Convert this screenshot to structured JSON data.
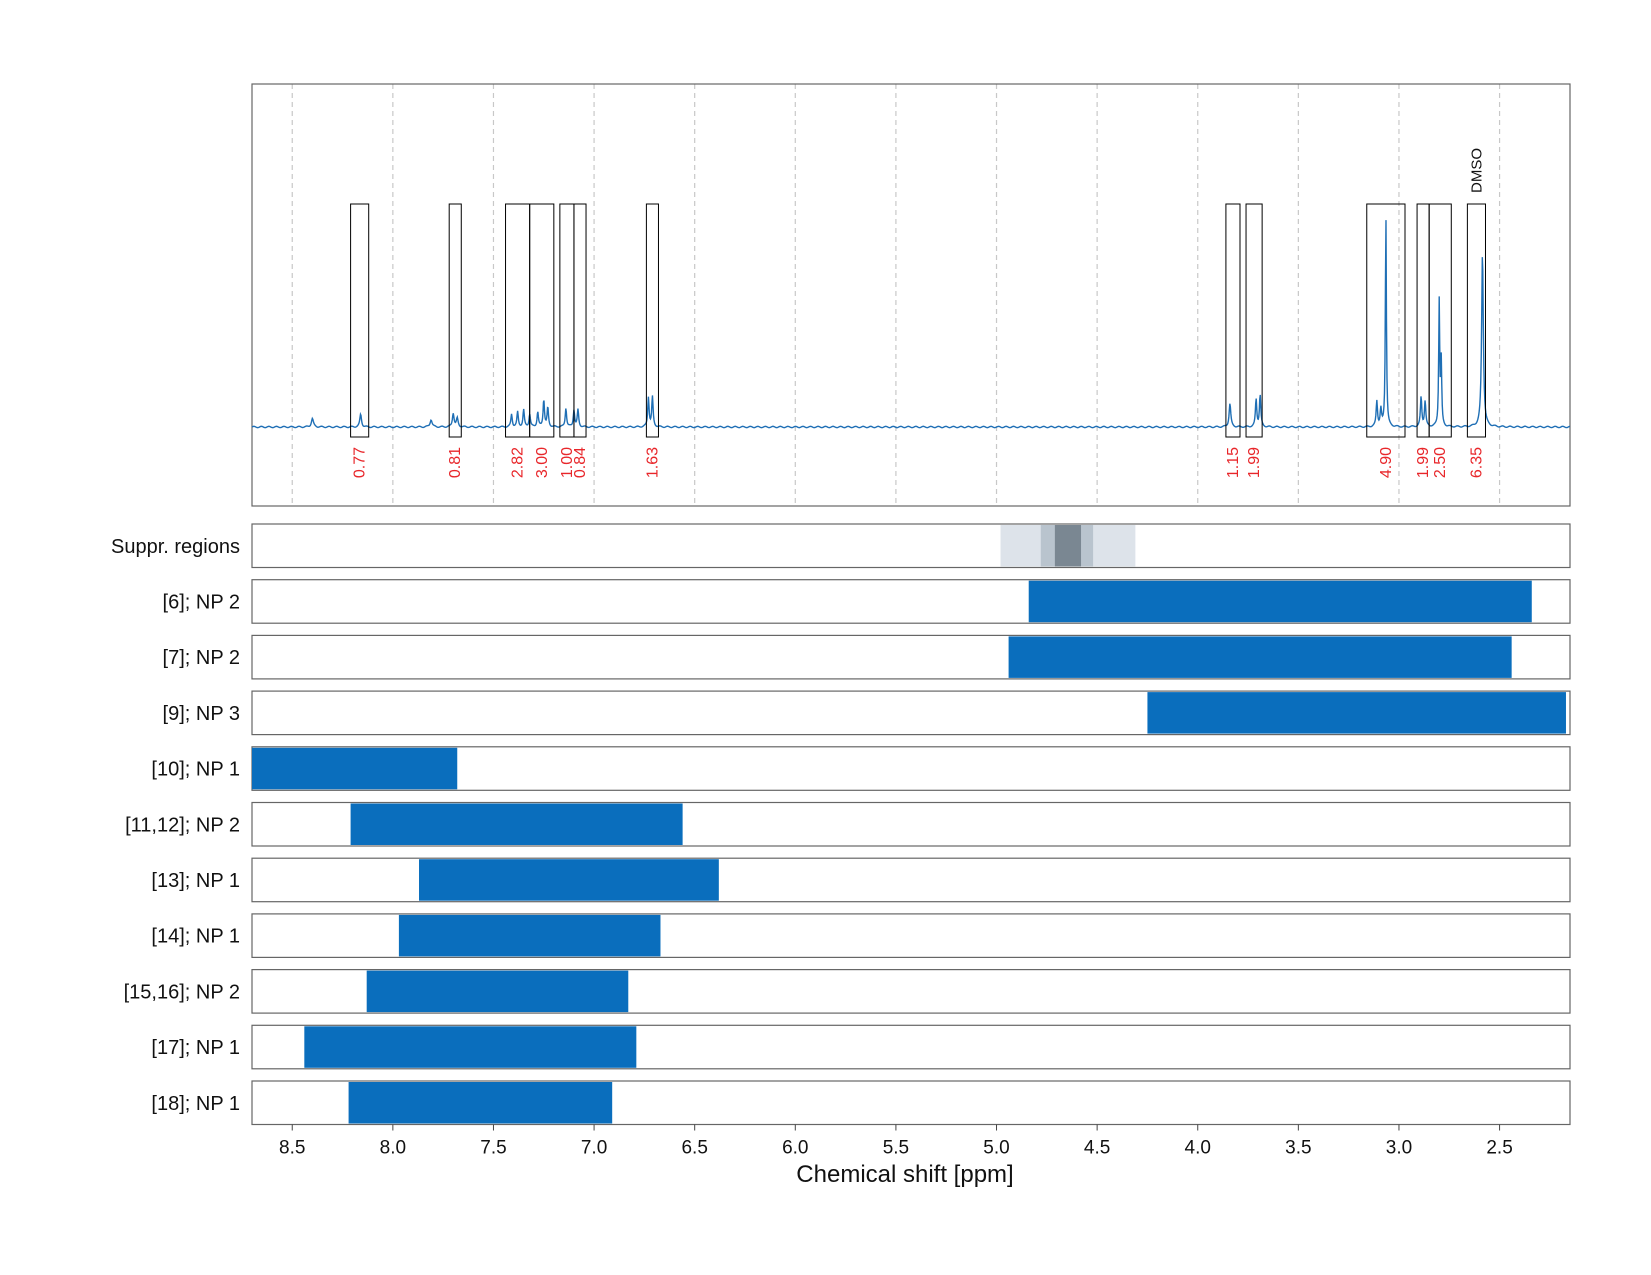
{
  "chart_data": {
    "type": "nmr-spectrum-with-ranges",
    "xlabel": "Chemical shift [ppm]",
    "x_direction": "descending",
    "xlim": [
      8.7,
      2.15
    ],
    "x_ticks": [
      "8.5",
      "8.0",
      "7.5",
      "7.0",
      "6.5",
      "6.0",
      "5.5",
      "5.0",
      "4.5",
      "4.0",
      "3.5",
      "3.0",
      "2.5"
    ],
    "grid": "vertical dashed",
    "colors": {
      "spectrum": "#1f6fb5",
      "bar": "#0a6ebd",
      "integral": "#e8262a",
      "box": "#000000"
    },
    "spectrum_peaks": [
      {
        "ppm": 8.4,
        "height": 0.04,
        "width": 0.006
      },
      {
        "ppm": 8.16,
        "height": 0.06,
        "width": 0.005
      },
      {
        "ppm": 7.81,
        "height": 0.035,
        "width": 0.006
      },
      {
        "ppm": 7.7,
        "height": 0.065,
        "width": 0.005
      },
      {
        "ppm": 7.68,
        "height": 0.04,
        "width": 0.005
      },
      {
        "ppm": 7.41,
        "height": 0.06,
        "width": 0.004
      },
      {
        "ppm": 7.38,
        "height": 0.07,
        "width": 0.004
      },
      {
        "ppm": 7.35,
        "height": 0.08,
        "width": 0.004
      },
      {
        "ppm": 7.32,
        "height": 0.06,
        "width": 0.004
      },
      {
        "ppm": 7.28,
        "height": 0.07,
        "width": 0.004
      },
      {
        "ppm": 7.25,
        "height": 0.13,
        "width": 0.004
      },
      {
        "ppm": 7.23,
        "height": 0.09,
        "width": 0.004
      },
      {
        "ppm": 7.14,
        "height": 0.09,
        "width": 0.004
      },
      {
        "ppm": 7.1,
        "height": 0.08,
        "width": 0.004
      },
      {
        "ppm": 7.08,
        "height": 0.08,
        "width": 0.004
      },
      {
        "ppm": 6.73,
        "height": 0.14,
        "width": 0.004
      },
      {
        "ppm": 6.71,
        "height": 0.14,
        "width": 0.004
      },
      {
        "ppm": 3.84,
        "height": 0.11,
        "width": 0.005
      },
      {
        "ppm": 3.71,
        "height": 0.13,
        "width": 0.004
      },
      {
        "ppm": 3.69,
        "height": 0.15,
        "width": 0.004
      },
      {
        "ppm": 3.11,
        "height": 0.12,
        "width": 0.004
      },
      {
        "ppm": 3.09,
        "height": 0.08,
        "width": 0.004
      },
      {
        "ppm": 3.065,
        "height": 1.0,
        "width": 0.003
      },
      {
        "ppm": 2.89,
        "height": 0.14,
        "width": 0.004
      },
      {
        "ppm": 2.87,
        "height": 0.12,
        "width": 0.004
      },
      {
        "ppm": 2.8,
        "height": 0.59,
        "width": 0.003
      },
      {
        "ppm": 2.79,
        "height": 0.3,
        "width": 0.003
      },
      {
        "ppm": 2.585,
        "height": 0.82,
        "width": 0.005
      }
    ],
    "integration_regions": [
      {
        "from": 8.21,
        "to": 8.12,
        "integral": "0.77"
      },
      {
        "from": 7.72,
        "to": 7.66,
        "integral": "0.81"
      },
      {
        "from": 7.44,
        "to": 7.32,
        "integral": "2.82"
      },
      {
        "from": 7.32,
        "to": 7.2,
        "integral": "3.00"
      },
      {
        "from": 7.17,
        "to": 7.1,
        "integral": "1.00"
      },
      {
        "from": 7.1,
        "to": 7.04,
        "integral": "0.84"
      },
      {
        "from": 6.74,
        "to": 6.68,
        "integral": "1.63"
      },
      {
        "from": 3.86,
        "to": 3.79,
        "integral": "1.15"
      },
      {
        "from": 3.76,
        "to": 3.68,
        "integral": "1.99"
      },
      {
        "from": 3.16,
        "to": 2.97,
        "integral": "4.90"
      },
      {
        "from": 2.91,
        "to": 2.85,
        "integral": "1.99"
      },
      {
        "from": 2.85,
        "to": 2.74,
        "integral": "2.50"
      },
      {
        "from": 2.66,
        "to": 2.57,
        "integral": "6.35"
      }
    ],
    "annotations": [
      {
        "ppm": 2.615,
        "text": "DMSO"
      }
    ],
    "suppressed_regions": [
      {
        "from": 4.98,
        "to": 4.31,
        "level": 1
      },
      {
        "from": 4.78,
        "to": 4.52,
        "level": 2
      },
      {
        "from": 4.71,
        "to": 4.58,
        "level": 3
      }
    ],
    "rows": [
      {
        "label": "Suppr. regions"
      },
      {
        "label": "[6]; NP 2",
        "from": 4.84,
        "to": 2.34
      },
      {
        "label": "[7]; NP 2",
        "from": 4.94,
        "to": 2.44
      },
      {
        "label": "[9]; NP 3",
        "from": 4.25,
        "to": 2.17
      },
      {
        "label": "[10]; NP 1",
        "from": 8.7,
        "to": 7.68
      },
      {
        "label": "[11,12]; NP 2",
        "from": 8.21,
        "to": 6.56
      },
      {
        "label": "[13]; NP 1",
        "from": 7.87,
        "to": 6.38
      },
      {
        "label": "[14]; NP 1",
        "from": 7.97,
        "to": 6.67
      },
      {
        "label": "[15,16]; NP 2",
        "from": 8.13,
        "to": 6.83
      },
      {
        "label": "[17]; NP 1",
        "from": 8.44,
        "to": 6.79
      },
      {
        "label": "[18]; NP 1",
        "from": 8.22,
        "to": 6.91
      }
    ]
  }
}
